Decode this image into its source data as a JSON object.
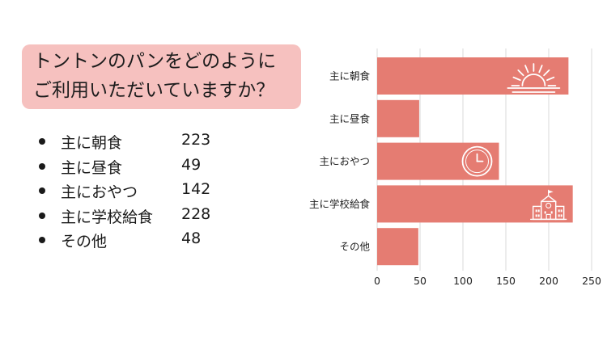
{
  "question": {
    "line1": "トントンのパンをどのように",
    "line2": "ご利用いただいていますか？"
  },
  "colors": {
    "bar": "#e57c72",
    "question_bg": "#f6c1bf",
    "grid": "#d9d9d9",
    "icon": "#ffffff"
  },
  "chart_data": {
    "type": "bar",
    "orientation": "horizontal",
    "title": "",
    "xlabel": "",
    "ylabel": "",
    "categories": [
      "主に朝食",
      "主に昼食",
      "主におやつ",
      "主に学校給食",
      "その他"
    ],
    "values": [
      223,
      49,
      142,
      228,
      48
    ],
    "xlim": [
      0,
      250
    ],
    "x_ticks": [
      "0",
      "50",
      "100",
      "150",
      "200",
      "250"
    ],
    "grid": "vertical",
    "legend": "none",
    "bar_icons": [
      "sunrise-icon",
      "",
      "clock-icon",
      "school-icon",
      ""
    ]
  }
}
